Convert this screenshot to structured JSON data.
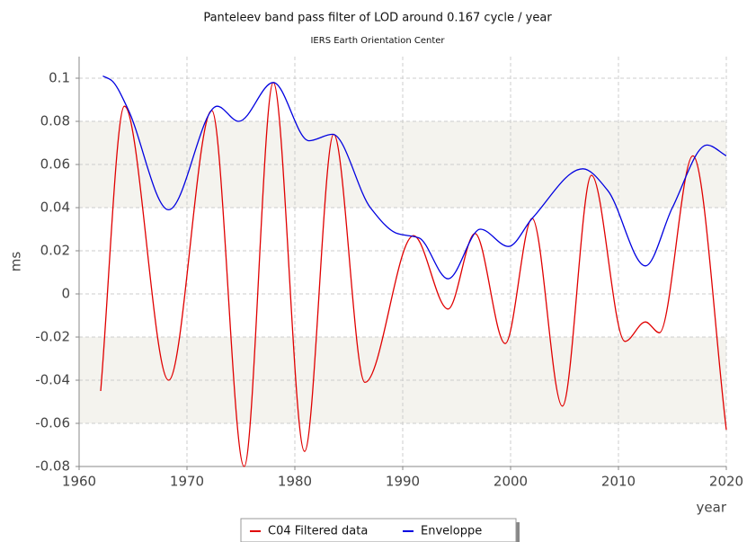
{
  "chart_data": {
    "type": "line",
    "title": "Panteleev band pass filter of LOD around 0.167 cycle / year",
    "subtitle": "IERS Earth Orientation Center",
    "x_label": "year",
    "y_label": "ms",
    "xlim": [
      1960,
      2020
    ],
    "xticks": [
      1960,
      1970,
      1980,
      1990,
      2000,
      2010,
      2020
    ],
    "ylim": [
      -0.08,
      0.11
    ],
    "yticks": [
      -0.08,
      -0.06,
      -0.04,
      -0.02,
      0,
      0.02,
      0.04,
      0.06,
      0.08,
      0.1
    ],
    "grid": true,
    "legend": "bottom",
    "series": [
      {
        "name": "C04 Filtered data",
        "color": "#e00000",
        "x": [
          1962.0,
          1964.2,
          1968.3,
          1972.3,
          1975.3,
          1978.0,
          1980.9,
          1983.6,
          1986.5,
          1991.0,
          1994.2,
          1996.7,
          1999.5,
          2002.0,
          2004.8,
          2007.5,
          2010.6,
          2012.5,
          2013.8,
          2016.9,
          2020.0
        ],
        "values": [
          -0.045,
          0.087,
          -0.04,
          0.085,
          -0.08,
          0.098,
          -0.073,
          0.074,
          -0.041,
          0.027,
          -0.007,
          0.028,
          -0.023,
          0.035,
          -0.052,
          0.055,
          -0.022,
          -0.013,
          -0.018,
          0.064,
          -0.063
        ]
      },
      {
        "name": "Enveloppe",
        "color": "#0000e0",
        "x": [
          1962.2,
          1963.0,
          1964.5,
          1968.3,
          1972.8,
          1974.8,
          1978.0,
          1981.3,
          1983.5,
          1987.0,
          1989.5,
          1991.5,
          1994.2,
          1997.2,
          1999.8,
          2002.0,
          2006.7,
          2009.0,
          2012.5,
          2015.0,
          2018.2,
          2020.0
        ],
        "values": [
          0.101,
          0.099,
          0.086,
          0.039,
          0.087,
          0.08,
          0.098,
          0.071,
          0.074,
          0.04,
          0.028,
          0.026,
          0.007,
          0.03,
          0.022,
          0.035,
          0.058,
          0.048,
          0.013,
          0.04,
          0.069,
          0.064
        ]
      }
    ]
  }
}
